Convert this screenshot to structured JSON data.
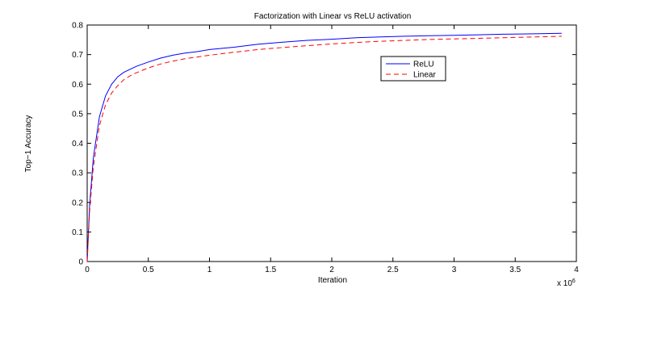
{
  "chart_data": {
    "type": "line",
    "title": "Factorization with Linear vs ReLU activation",
    "xlabel": "Iteration",
    "ylabel": "Top−1 Accuracy",
    "x_multiplier": "x 10",
    "x_multiplier_exp": "6",
    "xlim": [
      0,
      4
    ],
    "ylim": [
      0,
      0.8
    ],
    "x_ticks": [
      "0",
      "0.5",
      "1",
      "1.5",
      "2",
      "2.5",
      "3",
      "3.5",
      "4"
    ],
    "y_ticks": [
      "0",
      "0.1",
      "0.2",
      "0.3",
      "0.4",
      "0.5",
      "0.6",
      "0.7",
      "0.8"
    ],
    "grid": false,
    "legend_position": "upper-right",
    "series": [
      {
        "name": "ReLU",
        "color": "#0000ff",
        "style": "solid",
        "x": [
          0,
          0.02,
          0.05,
          0.1,
          0.15,
          0.2,
          0.25,
          0.3,
          0.35,
          0.4,
          0.5,
          0.6,
          0.7,
          0.8,
          0.9,
          1.0,
          1.2,
          1.4,
          1.6,
          1.8,
          2.0,
          2.2,
          2.4,
          2.6,
          2.8,
          3.0,
          3.2,
          3.4,
          3.6,
          3.88
        ],
        "y": [
          0.0,
          0.19,
          0.35,
          0.49,
          0.56,
          0.6,
          0.625,
          0.64,
          0.65,
          0.66,
          0.675,
          0.688,
          0.698,
          0.705,
          0.71,
          0.717,
          0.725,
          0.735,
          0.742,
          0.748,
          0.752,
          0.757,
          0.76,
          0.762,
          0.764,
          0.765,
          0.767,
          0.769,
          0.77,
          0.772
        ]
      },
      {
        "name": "Linear",
        "color": "#ff0000",
        "style": "dashed",
        "x": [
          0,
          0.02,
          0.05,
          0.1,
          0.15,
          0.2,
          0.25,
          0.3,
          0.35,
          0.4,
          0.5,
          0.6,
          0.7,
          0.8,
          0.9,
          1.0,
          1.2,
          1.4,
          1.6,
          1.8,
          2.0,
          2.2,
          2.4,
          2.6,
          2.8,
          3.0,
          3.2,
          3.4,
          3.6,
          3.88
        ],
        "y": [
          0.0,
          0.17,
          0.32,
          0.46,
          0.53,
          0.57,
          0.595,
          0.615,
          0.628,
          0.638,
          0.655,
          0.668,
          0.678,
          0.686,
          0.692,
          0.698,
          0.708,
          0.717,
          0.724,
          0.73,
          0.736,
          0.741,
          0.745,
          0.748,
          0.751,
          0.753,
          0.755,
          0.757,
          0.759,
          0.762
        ]
      }
    ]
  }
}
